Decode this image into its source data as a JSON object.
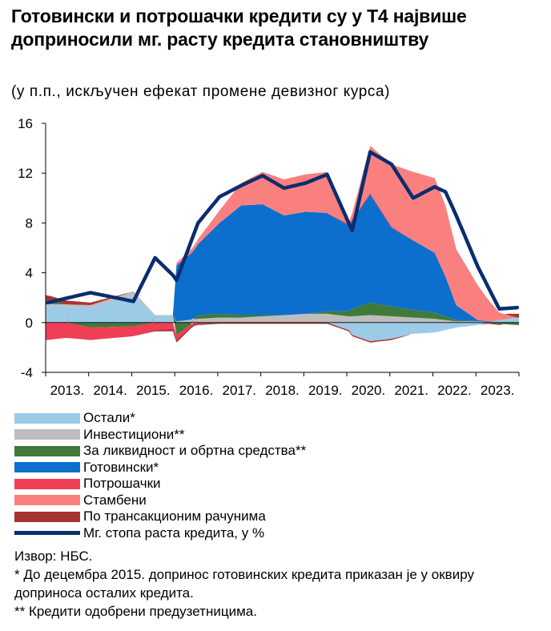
{
  "title": "Готовински и потрошачки кредити су у Т4 највише доприносили мг. расту кредита становништву",
  "subtitle": "(у п.п., искључен ефекат промене девизног курса)",
  "chart_data": {
    "type": "area",
    "stacked": true,
    "title": "Готовински и потрошачки кредити су у Т4 највише доприносили мг. расту кредита становништву",
    "ylabel": "у п.п.",
    "ylim": [
      -4,
      16
    ],
    "yticks": [
      "-4",
      "0",
      "4",
      "8",
      "12",
      "16"
    ],
    "xticks": [
      "2013.",
      "2014.",
      "2015.",
      "2016.",
      "2017.",
      "2018.",
      "2019.",
      "2020.",
      "2021.",
      "2022.",
      "2023."
    ],
    "x_start": "2013-01",
    "x_end": "2023-12",
    "anchor_months": [
      0,
      12,
      24,
      30,
      35,
      36,
      42,
      48,
      54,
      60,
      66,
      72,
      78,
      84,
      85,
      90,
      96,
      102,
      108,
      111,
      114,
      120,
      126,
      131
    ],
    "series": [
      {
        "name": "Остали*",
        "color": "#9ccbe8",
        "values": [
          1.4,
          1.2,
          2.2,
          0.5,
          0.5,
          0,
          0,
          0,
          0,
          0,
          0,
          0,
          0,
          -0.6,
          -1.0,
          -1.5,
          -1.3,
          -0.9,
          -0.8,
          -0.6,
          -0.4,
          -0.2,
          0.2,
          0.4
        ]
      },
      {
        "name": "Инвестициони**",
        "color": "#bdbdbd",
        "values": [
          0.1,
          0.2,
          0.3,
          0.1,
          0.1,
          0.1,
          0.3,
          0.4,
          0.4,
          0.5,
          0.6,
          0.7,
          0.7,
          0.5,
          0.5,
          0.6,
          0.5,
          0.4,
          0.3,
          0.2,
          0.1,
          0.1,
          0,
          0
        ]
      },
      {
        "name": "За ликвидност и обртна средства**",
        "color": "#3f7a3a",
        "values": [
          0.3,
          -0.4,
          -0.3,
          0,
          0,
          -1.0,
          0.3,
          0.3,
          0.2,
          0.1,
          0,
          0,
          0.2,
          0.4,
          0.6,
          1.0,
          0.8,
          0.6,
          0.5,
          0.3,
          0.1,
          0,
          -0.1,
          -0.2
        ]
      },
      {
        "name": "Готовински*",
        "color": "#0d6fcd",
        "values": [
          0,
          0,
          0,
          0,
          0,
          4.5,
          5.7,
          7.3,
          8.8,
          8.9,
          8.0,
          8.2,
          7.9,
          6.9,
          7.1,
          8.7,
          6.3,
          5.6,
          4.8,
          3.2,
          1.2,
          0.1,
          0,
          0
        ]
      },
      {
        "name": "Потрошачки",
        "color": "#ef3e55",
        "values": [
          -1.4,
          -1.0,
          -0.8,
          -0.6,
          -0.5,
          -0.4,
          -0.1,
          0,
          0,
          0,
          0,
          0,
          0,
          0.1,
          0.1,
          0.1,
          0.1,
          0,
          0,
          0,
          0,
          0,
          0,
          0
        ]
      },
      {
        "name": "Стамбени",
        "color": "#fa8080",
        "values": [
          0,
          0,
          0,
          0,
          0,
          0.2,
          0.4,
          1.0,
          1.8,
          2.6,
          2.9,
          3.0,
          3.3,
          0.1,
          0.5,
          3.8,
          5.0,
          5.5,
          6.0,
          5.7,
          4.5,
          2.8,
          0.6,
          0
        ]
      },
      {
        "name": "По трансакционим рачунима",
        "color": "#a83432",
        "values": [
          0.4,
          0.2,
          0,
          -0.1,
          -0.2,
          -0.2,
          -0.1,
          -0.1,
          -0.1,
          -0.1,
          -0.1,
          -0.1,
          -0.1,
          -0.1,
          -0.1,
          -0.1,
          -0.1,
          0,
          0,
          0,
          0,
          0,
          -0.1,
          0.3
        ]
      }
    ],
    "line": {
      "name": "Мг. стопа раста кредита, у %",
      "color": "#0a2d6e",
      "values": [
        1.6,
        2.4,
        1.7,
        5.2,
        3.8,
        3.4,
        8.0,
        10.1,
        11.0,
        11.8,
        10.8,
        11.2,
        11.9,
        8.0,
        7.4,
        13.7,
        12.7,
        10.0,
        10.9,
        10.5,
        8.6,
        4.5,
        1.1,
        1.2
      ]
    }
  },
  "legend": [
    {
      "label": "Остали*",
      "color": "#9ccbe8",
      "kind": "area"
    },
    {
      "label": "Инвестициони**",
      "color": "#bdbdbd",
      "kind": "area"
    },
    {
      "label": "За ликвидност и обртна средства**",
      "color": "#3f7a3a",
      "kind": "area"
    },
    {
      "label": "Готовински*",
      "color": "#0d6fcd",
      "kind": "area"
    },
    {
      "label": "Потрошачки",
      "color": "#ef3e55",
      "kind": "area"
    },
    {
      "label": "Стамбени",
      "color": "#fa8080",
      "kind": "area"
    },
    {
      "label": "По трансакционим рачунима",
      "color": "#a83432",
      "kind": "area"
    },
    {
      "label": "Мг. стопа раста кредита, у %",
      "color": "#0a2d6e",
      "kind": "line"
    }
  ],
  "notes": {
    "source": "Извор: НБС.",
    "note1": "* До децембра 2015. допринос готовинских кредита приказан је у оквиру доприноса осталих кредита.",
    "note2": "** Кредити одобрени предузетницима."
  }
}
